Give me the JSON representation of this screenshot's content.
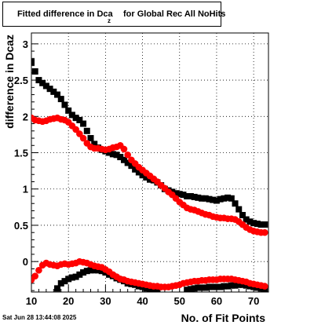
{
  "title": {
    "main": "Fitted difference in Dca",
    "subscript": "z",
    "rest": "for Global Rec All NoHits"
  },
  "timestamp": "Sat Jun 28 13:44:08 2025",
  "colors": {
    "black_series": "#000000",
    "red_series": "#ff0000",
    "grid": "#000000"
  },
  "chart_data": {
    "type": "scatter",
    "title": "Fitted difference in Dca_z for Global Rec All NoHits",
    "xlabel": "No. of Fit Points",
    "ylabel": "difference in Dca_z",
    "xlim": [
      10,
      74
    ],
    "ylim": [
      -0.42,
      3.15
    ],
    "xticks": [
      10,
      20,
      30,
      40,
      50,
      60,
      70
    ],
    "yticks": [
      0,
      0.5,
      1,
      1.5,
      2,
      2.5,
      3
    ],
    "ytick_labels": [
      "0",
      "0.5",
      "1",
      "1.5",
      "2",
      "2.5",
      "3"
    ],
    "grid": true,
    "series": [
      {
        "marker": "square",
        "color": "#000000",
        "points": [
          [
            10,
            2.75
          ],
          [
            11,
            2.62
          ],
          [
            12,
            2.5
          ],
          [
            13,
            2.46
          ],
          [
            14,
            2.42
          ],
          [
            15,
            2.38
          ],
          [
            16,
            2.34
          ],
          [
            17,
            2.3
          ],
          [
            18,
            2.24
          ],
          [
            19,
            2.16
          ],
          [
            20,
            2.08
          ],
          [
            21,
            2.02
          ],
          [
            22,
            1.98
          ],
          [
            23,
            1.95
          ],
          [
            24,
            1.9
          ],
          [
            25,
            1.8
          ],
          [
            26,
            1.7
          ],
          [
            27,
            1.62
          ],
          [
            28,
            1.57
          ],
          [
            29,
            1.54
          ],
          [
            30,
            1.52
          ],
          [
            31,
            1.5
          ],
          [
            32,
            1.48
          ],
          [
            33,
            1.47
          ],
          [
            34,
            1.44
          ],
          [
            35,
            1.4
          ],
          [
            36,
            1.36
          ],
          [
            37,
            1.32
          ],
          [
            38,
            1.27
          ],
          [
            39,
            1.23
          ],
          [
            40,
            1.19
          ],
          [
            41,
            1.16
          ],
          [
            42,
            1.13
          ],
          [
            43,
            1.12
          ],
          [
            44,
            1.09
          ],
          [
            45,
            1.05
          ],
          [
            46,
            1.0
          ],
          [
            47,
            0.98
          ],
          [
            48,
            0.96
          ],
          [
            49,
            0.94
          ],
          [
            50,
            0.93
          ],
          [
            51,
            0.92
          ],
          [
            52,
            0.9
          ],
          [
            53,
            0.9
          ],
          [
            54,
            0.89
          ],
          [
            55,
            0.88
          ],
          [
            56,
            0.87
          ],
          [
            57,
            0.87
          ],
          [
            58,
            0.86
          ],
          [
            59,
            0.85
          ],
          [
            60,
            0.84
          ],
          [
            61,
            0.86
          ],
          [
            62,
            0.87
          ],
          [
            63,
            0.88
          ],
          [
            64,
            0.87
          ],
          [
            65,
            0.8
          ],
          [
            66,
            0.72
          ],
          [
            67,
            0.64
          ],
          [
            68,
            0.58
          ],
          [
            69,
            0.55
          ],
          [
            70,
            0.53
          ],
          [
            71,
            0.52
          ],
          [
            72,
            0.51
          ],
          [
            73,
            0.51
          ],
          [
            17,
            -0.37
          ],
          [
            18,
            -0.3
          ],
          [
            19,
            -0.27
          ],
          [
            20,
            -0.24
          ],
          [
            21,
            -0.22
          ],
          [
            22,
            -0.21
          ],
          [
            23,
            -0.18
          ],
          [
            24,
            -0.15
          ],
          [
            25,
            -0.13
          ],
          [
            26,
            -0.12
          ],
          [
            27,
            -0.12
          ],
          [
            28,
            -0.12
          ],
          [
            29,
            -0.13
          ],
          [
            30,
            -0.15
          ],
          [
            31,
            -0.18
          ],
          [
            32,
            -0.2
          ],
          [
            33,
            -0.23
          ],
          [
            34,
            -0.25
          ],
          [
            35,
            -0.27
          ],
          [
            36,
            -0.3
          ],
          [
            37,
            -0.31
          ],
          [
            38,
            -0.32
          ],
          [
            39,
            -0.34
          ],
          [
            40,
            -0.35
          ],
          [
            41,
            -0.37
          ],
          [
            42,
            -0.38
          ],
          [
            43,
            -0.4
          ],
          [
            44,
            -0.41
          ],
          [
            52,
            -0.39
          ],
          [
            53,
            -0.38
          ],
          [
            54,
            -0.37
          ],
          [
            55,
            -0.36
          ],
          [
            56,
            -0.36
          ],
          [
            57,
            -0.36
          ],
          [
            58,
            -0.35
          ],
          [
            59,
            -0.35
          ],
          [
            60,
            -0.35
          ],
          [
            61,
            -0.35
          ],
          [
            62,
            -0.34
          ],
          [
            63,
            -0.34
          ],
          [
            64,
            -0.33
          ],
          [
            65,
            -0.33
          ],
          [
            66,
            -0.32
          ],
          [
            67,
            -0.32
          ],
          [
            68,
            -0.33
          ],
          [
            69,
            -0.34
          ],
          [
            70,
            -0.35
          ],
          [
            71,
            -0.36
          ],
          [
            72,
            -0.37
          ],
          [
            73,
            -0.38
          ]
        ]
      },
      {
        "marker": "circle",
        "color": "#ff0000",
        "points": [
          [
            10,
            1.98
          ],
          [
            11,
            1.95
          ],
          [
            12,
            1.94
          ],
          [
            13,
            1.93
          ],
          [
            14,
            1.94
          ],
          [
            15,
            1.96
          ],
          [
            16,
            1.97
          ],
          [
            17,
            1.98
          ],
          [
            18,
            1.96
          ],
          [
            19,
            1.95
          ],
          [
            20,
            1.92
          ],
          [
            21,
            1.87
          ],
          [
            22,
            1.82
          ],
          [
            23,
            1.76
          ],
          [
            24,
            1.7
          ],
          [
            25,
            1.63
          ],
          [
            26,
            1.58
          ],
          [
            27,
            1.56
          ],
          [
            28,
            1.56
          ],
          [
            29,
            1.55
          ],
          [
            30,
            1.54
          ],
          [
            31,
            1.55
          ],
          [
            32,
            1.57
          ],
          [
            33,
            1.58
          ],
          [
            34,
            1.6
          ],
          [
            35,
            1.55
          ],
          [
            36,
            1.47
          ],
          [
            37,
            1.4
          ],
          [
            38,
            1.35
          ],
          [
            39,
            1.3
          ],
          [
            40,
            1.26
          ],
          [
            41,
            1.22
          ],
          [
            42,
            1.18
          ],
          [
            43,
            1.14
          ],
          [
            44,
            1.1
          ],
          [
            45,
            1.05
          ],
          [
            46,
            1.01
          ],
          [
            47,
            0.96
          ],
          [
            48,
            0.92
          ],
          [
            49,
            0.87
          ],
          [
            50,
            0.82
          ],
          [
            51,
            0.78
          ],
          [
            52,
            0.74
          ],
          [
            53,
            0.72
          ],
          [
            54,
            0.71
          ],
          [
            55,
            0.69
          ],
          [
            56,
            0.67
          ],
          [
            57,
            0.65
          ],
          [
            58,
            0.64
          ],
          [
            59,
            0.62
          ],
          [
            60,
            0.61
          ],
          [
            61,
            0.6
          ],
          [
            62,
            0.6
          ],
          [
            63,
            0.59
          ],
          [
            64,
            0.59
          ],
          [
            65,
            0.58
          ],
          [
            66,
            0.55
          ],
          [
            67,
            0.51
          ],
          [
            68,
            0.47
          ],
          [
            69,
            0.44
          ],
          [
            70,
            0.42
          ],
          [
            71,
            0.41
          ],
          [
            72,
            0.4
          ],
          [
            73,
            0.4
          ],
          [
            10,
            -0.25
          ],
          [
            11,
            -0.2
          ],
          [
            12,
            -0.12
          ],
          [
            13,
            -0.05
          ],
          [
            14,
            -0.02
          ],
          [
            15,
            -0.04
          ],
          [
            16,
            -0.05
          ],
          [
            17,
            -0.06
          ],
          [
            18,
            -0.04
          ],
          [
            19,
            -0.03
          ],
          [
            20,
            -0.04
          ],
          [
            21,
            -0.03
          ],
          [
            22,
            -0.02
          ],
          [
            23,
            0.0
          ],
          [
            24,
            -0.01
          ],
          [
            25,
            -0.02
          ],
          [
            26,
            -0.04
          ],
          [
            27,
            -0.06
          ],
          [
            28,
            -0.07
          ],
          [
            29,
            -0.08
          ],
          [
            30,
            -0.11
          ],
          [
            31,
            -0.14
          ],
          [
            32,
            -0.18
          ],
          [
            33,
            -0.21
          ],
          [
            34,
            -0.24
          ],
          [
            35,
            -0.25
          ],
          [
            36,
            -0.27
          ],
          [
            37,
            -0.28
          ],
          [
            38,
            -0.29
          ],
          [
            39,
            -0.3
          ],
          [
            40,
            -0.31
          ],
          [
            41,
            -0.32
          ],
          [
            42,
            -0.33
          ],
          [
            43,
            -0.34
          ],
          [
            44,
            -0.34
          ],
          [
            45,
            -0.35
          ],
          [
            46,
            -0.35
          ],
          [
            47,
            -0.35
          ],
          [
            48,
            -0.34
          ],
          [
            49,
            -0.33
          ],
          [
            50,
            -0.32
          ],
          [
            51,
            -0.3
          ],
          [
            52,
            -0.29
          ],
          [
            53,
            -0.28
          ],
          [
            54,
            -0.27
          ],
          [
            55,
            -0.27
          ],
          [
            56,
            -0.26
          ],
          [
            57,
            -0.26
          ],
          [
            58,
            -0.25
          ],
          [
            59,
            -0.25
          ],
          [
            60,
            -0.25
          ],
          [
            61,
            -0.24
          ],
          [
            62,
            -0.24
          ],
          [
            63,
            -0.24
          ],
          [
            64,
            -0.24
          ],
          [
            65,
            -0.25
          ],
          [
            66,
            -0.26
          ],
          [
            67,
            -0.27
          ],
          [
            68,
            -0.28
          ],
          [
            69,
            -0.3
          ],
          [
            70,
            -0.31
          ],
          [
            71,
            -0.32
          ],
          [
            72,
            -0.33
          ],
          [
            73,
            -0.34
          ]
        ]
      }
    ]
  }
}
